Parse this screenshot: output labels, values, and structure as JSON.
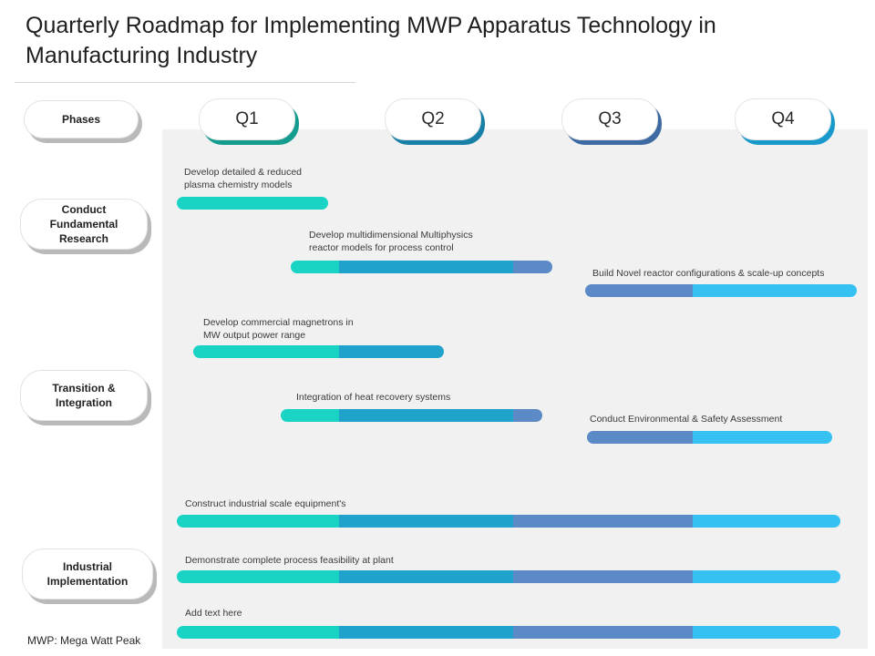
{
  "title": "Quarterly Roadmap for Implementing MWP Apparatus Technology in Manufacturing Industry",
  "footnote": "MWP: Mega Watt Peak",
  "colors": {
    "q1": "#19d3c5",
    "q2": "#1fa3cc",
    "q3": "#5b8ac6",
    "q4": "#35c2f2",
    "background": "#f1f1f2"
  },
  "phases": {
    "header": "Phases",
    "items": [
      "Conduct Fundamental Research",
      "Transition & Integration",
      "Industrial Implementation"
    ]
  },
  "quarters": [
    "Q1",
    "Q2",
    "Q3",
    "Q4"
  ],
  "tasks": [
    {
      "label": "Develop detailed & reduced plasma chemistry models",
      "phase": 0,
      "start_quarter": 0.0,
      "end_quarter": 0.93
    },
    {
      "label": "Develop multidimensional Multiphysics reactor models for process control",
      "phase": 0,
      "start_quarter": 0.7,
      "end_quarter": 2.22
    },
    {
      "label": "Build Novel reactor configurations & scale-up concepts",
      "phase": 0,
      "start_quarter": 2.4,
      "end_quarter": 4.0
    },
    {
      "label": "Develop commercial magnetrons in MW output power range",
      "phase": 1,
      "start_quarter": 0.1,
      "end_quarter": 1.6
    },
    {
      "label": "Integration of heat recovery systems",
      "phase": 1,
      "start_quarter": 0.64,
      "end_quarter": 2.16
    },
    {
      "label": "Conduct Environmental & Safety Assessment",
      "phase": 1,
      "start_quarter": 2.41,
      "end_quarter": 3.85
    },
    {
      "label": "Construct industrial scale equipment's",
      "phase": 2,
      "start_quarter": 0.0,
      "end_quarter": 3.9
    },
    {
      "label": "Demonstrate complete process feasibility at plant",
      "phase": 2,
      "start_quarter": 0.0,
      "end_quarter": 3.9
    },
    {
      "label": "Add text here",
      "phase": 2,
      "start_quarter": 0.0,
      "end_quarter": 3.9
    }
  ]
}
